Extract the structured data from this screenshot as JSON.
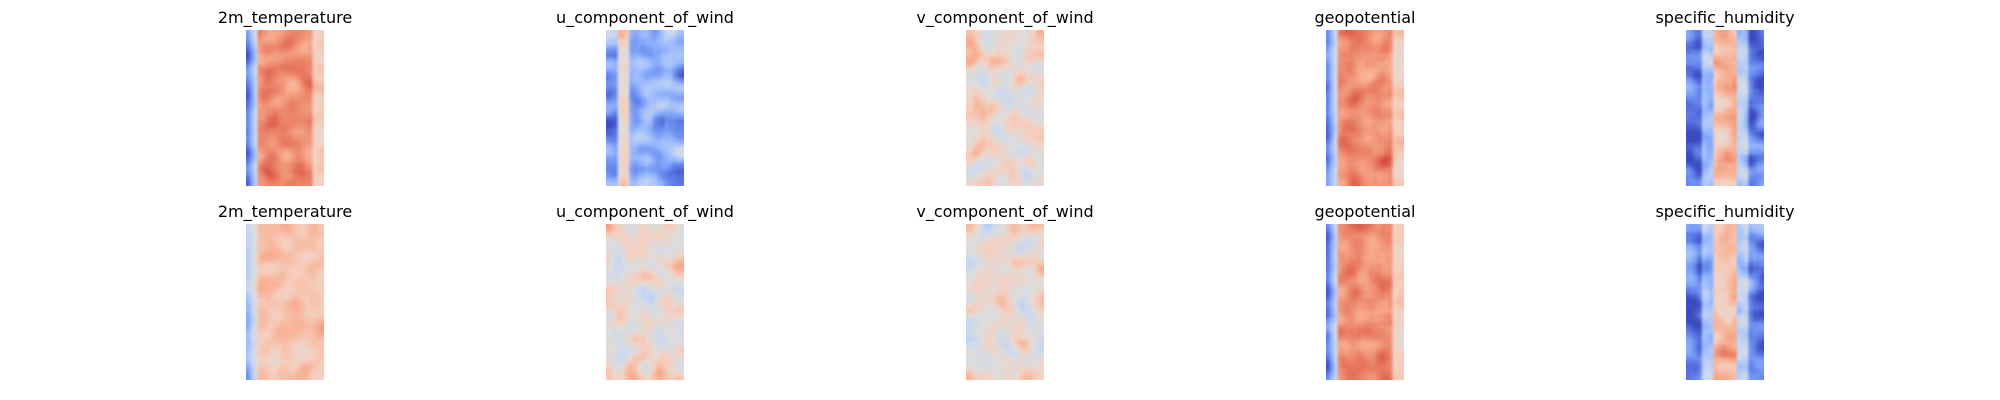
{
  "figure": {
    "colormap": "coolwarm",
    "colormap_stops": [
      "#3b4cc0",
      "#6788ee",
      "#9abbff",
      "#c9d7f0",
      "#dddddd",
      "#f6cfbf",
      "#f7a889",
      "#e26952",
      "#b40426"
    ],
    "rows": 2,
    "columns": 5
  },
  "chart_data": [
    {
      "type": "heatmap",
      "title": "2m_temperature",
      "row": 1,
      "column": 1,
      "pattern": "warm-center-cool-left-edge",
      "axes": "off"
    },
    {
      "type": "heatmap",
      "title": "u_component_of_wind",
      "row": 1,
      "column": 2,
      "pattern": "mostly-cool-with-warm-left-streaks",
      "axes": "off"
    },
    {
      "type": "heatmap",
      "title": "v_component_of_wind",
      "row": 1,
      "column": 3,
      "pattern": "mixed-light-warm-and-cool",
      "axes": "off"
    },
    {
      "type": "heatmap",
      "title": "geopotential",
      "row": 1,
      "column": 4,
      "pattern": "warm-center-cool-left-edge",
      "axes": "off"
    },
    {
      "type": "heatmap",
      "title": "specific_humidity",
      "row": 1,
      "column": 5,
      "pattern": "cool-edges-warm-center-band",
      "axes": "off"
    },
    {
      "type": "heatmap",
      "title": "2m_temperature",
      "row": 2,
      "column": 1,
      "pattern": "light-warm-with-cool-left-edge",
      "axes": "off"
    },
    {
      "type": "heatmap",
      "title": "u_component_of_wind",
      "row": 2,
      "column": 2,
      "pattern": "mixed-light-warm-and-cool",
      "axes": "off"
    },
    {
      "type": "heatmap",
      "title": "v_component_of_wind",
      "row": 2,
      "column": 3,
      "pattern": "mixed-light-warm-and-cool",
      "axes": "off"
    },
    {
      "type": "heatmap",
      "title": "geopotential",
      "row": 2,
      "column": 4,
      "pattern": "warm-center-cool-left-edge",
      "axes": "off"
    },
    {
      "type": "heatmap",
      "title": "specific_humidity",
      "row": 2,
      "column": 5,
      "pattern": "cool-edges-warm-center-band",
      "axes": "off"
    }
  ]
}
